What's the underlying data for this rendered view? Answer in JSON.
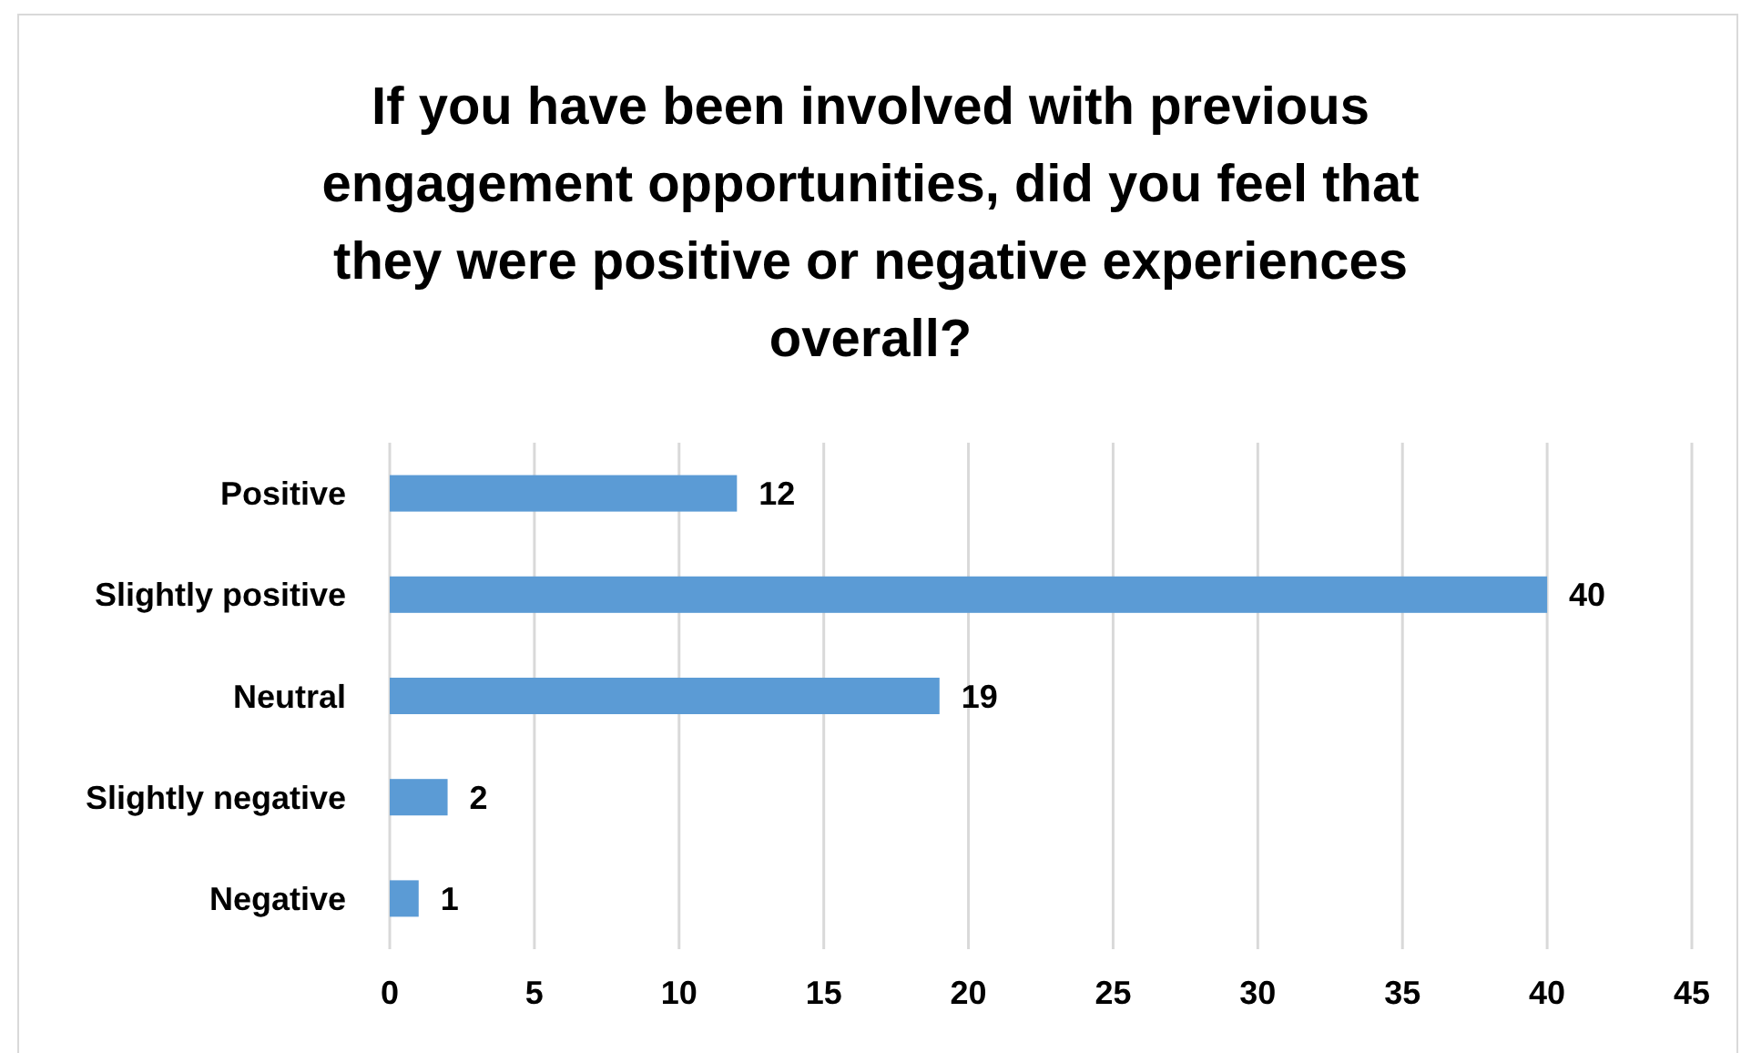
{
  "chart_data": {
    "type": "bar",
    "orientation": "horizontal",
    "title": "If you have been involved with previous engagement opportunities, did you feel that they were positive or negative experiences overall?",
    "categories": [
      "Positive",
      "Slightly positive",
      "Neutral",
      "Slightly negative",
      "Negative"
    ],
    "values": [
      12,
      40,
      19,
      2,
      1
    ],
    "color": "#5b9bd5",
    "data_labels": true,
    "xlim": [
      0,
      45
    ],
    "xticks": [
      0,
      5,
      10,
      15,
      20,
      25,
      30,
      35,
      40,
      45
    ],
    "grid": "x"
  }
}
